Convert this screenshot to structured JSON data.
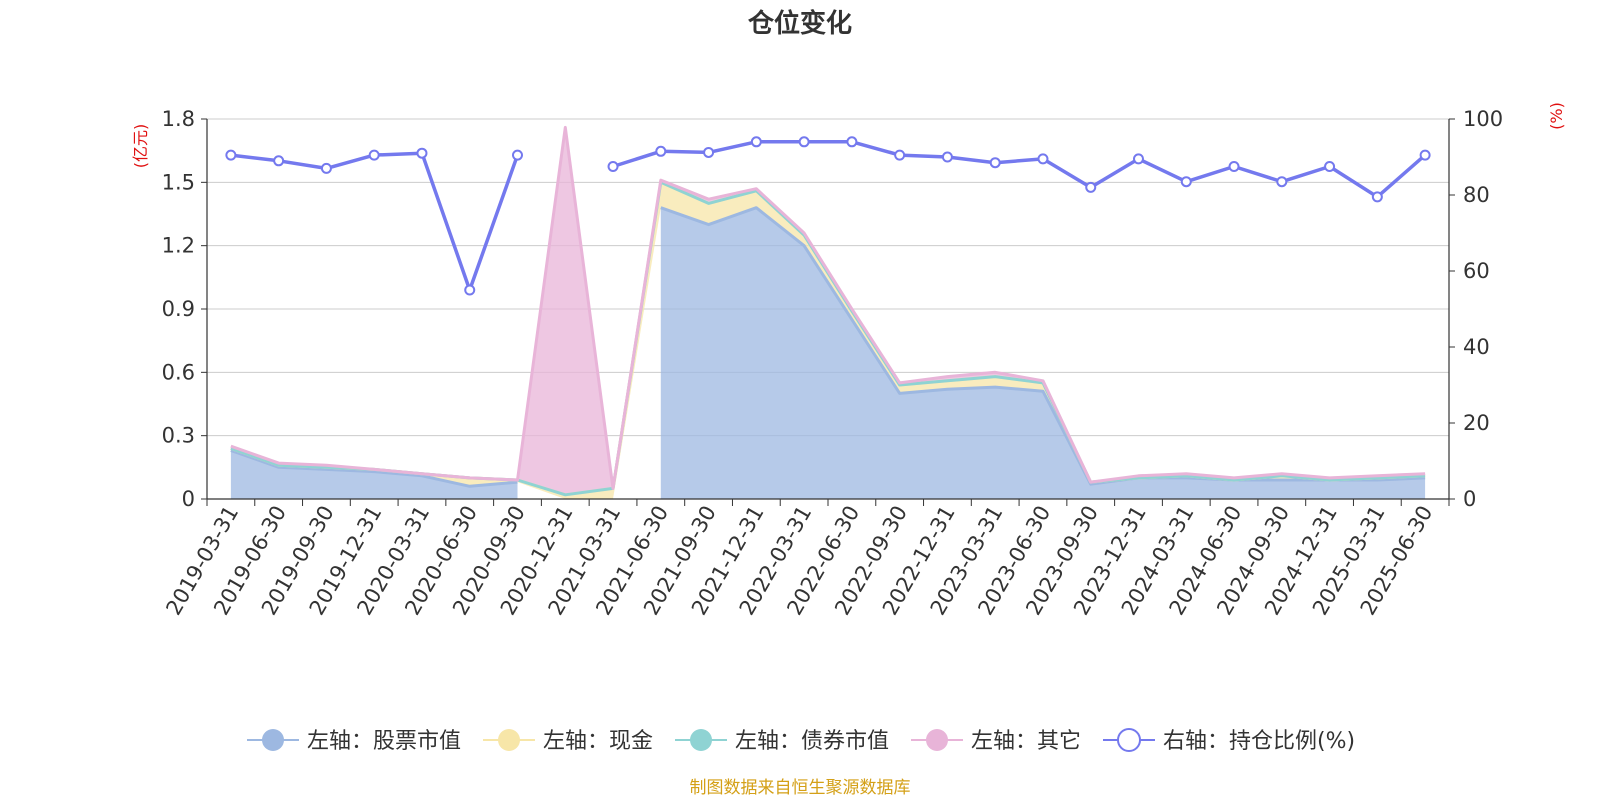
{
  "chart_data": {
    "type": "area",
    "title": "仓位变化",
    "source_note": "制图数据来自恒生聚源数据库",
    "left_axis": {
      "unit": "(亿元)",
      "ylim": [
        0,
        1.8
      ],
      "ticks": [
        "0",
        "0.3",
        "0.6",
        "0.9",
        "1.2",
        "1.5",
        "1.8"
      ]
    },
    "right_axis": {
      "unit": "(%)",
      "ylim": [
        0,
        100
      ],
      "ticks": [
        "0",
        "20",
        "40",
        "60",
        "80",
        "100"
      ]
    },
    "grid": true,
    "legend_position": "bottom",
    "categories": [
      "2019-03-31",
      "2019-06-30",
      "2019-09-30",
      "2019-12-31",
      "2020-03-31",
      "2020-06-30",
      "2020-09-30",
      "2020-12-31",
      "2021-03-31",
      "2021-06-30",
      "2021-09-30",
      "2021-12-31",
      "2022-03-31",
      "2022-06-30",
      "2022-09-30",
      "2022-12-31",
      "2023-03-31",
      "2023-06-30",
      "2023-09-30",
      "2023-12-31",
      "2024-03-31",
      "2024-06-30",
      "2024-09-30",
      "2024-12-31",
      "2025-03-31",
      "2025-06-30"
    ],
    "series": [
      {
        "name": "左轴：股票市值",
        "axis": "left",
        "kind": "stacked-area",
        "color": "#9db8e1",
        "values": [
          0.23,
          0.15,
          0.14,
          0.13,
          0.11,
          0.06,
          0.08,
          null,
          null,
          1.38,
          1.3,
          1.38,
          1.2,
          0.85,
          0.5,
          0.52,
          0.53,
          0.51,
          0.07,
          0.1,
          0.1,
          0.09,
          0.09,
          0.09,
          0.09,
          0.1
        ]
      },
      {
        "name": "左轴：现金",
        "axis": "left",
        "kind": "stacked-area",
        "color": "#f7e6a8",
        "values": [
          0.01,
          0.01,
          0.01,
          0.01,
          0.01,
          0.04,
          0.01,
          0.02,
          0.05,
          0.12,
          0.1,
          0.08,
          0.05,
          0.04,
          0.04,
          0.04,
          0.05,
          0.04,
          0.01,
          0.0,
          0.01,
          0.0,
          0.02,
          0.0,
          0.01,
          0.01
        ]
      },
      {
        "name": "左轴：债券市值",
        "axis": "left",
        "kind": "stacked-area",
        "color": "#8fd3d3",
        "values": [
          0,
          0,
          0,
          0,
          0,
          0,
          0,
          0,
          0,
          0,
          0,
          0,
          0,
          0,
          0,
          0,
          0,
          0,
          0,
          0,
          0,
          0,
          0,
          0,
          0,
          0
        ]
      },
      {
        "name": "左轴：其它",
        "axis": "left",
        "kind": "stacked-area",
        "color": "#e8b4d8",
        "values": [
          0.01,
          0.01,
          0.01,
          0.0,
          0.0,
          0.0,
          0.0,
          1.74,
          0.0,
          0.01,
          0.02,
          0.01,
          0.01,
          0.01,
          0.01,
          0.02,
          0.02,
          0.01,
          0.0,
          0.01,
          0.01,
          0.01,
          0.01,
          0.01,
          0.01,
          0.01
        ]
      },
      {
        "name": "右轴：持仓比例(%)",
        "axis": "right",
        "kind": "line-markers",
        "color": "#7479ee",
        "values": [
          90.5,
          89,
          87,
          90.5,
          91,
          55,
          90.5,
          null,
          87.5,
          91.5,
          91.2,
          94,
          94,
          94,
          90.5,
          90,
          88.5,
          89.5,
          82,
          89.5,
          83.5,
          87.5,
          83.5,
          87.5,
          79.5,
          90.5
        ]
      }
    ]
  },
  "colors": {
    "title": "#333333",
    "axis": "#333333",
    "grid": "#cccccc",
    "unit": "#e01010",
    "source": "#d4a017"
  }
}
